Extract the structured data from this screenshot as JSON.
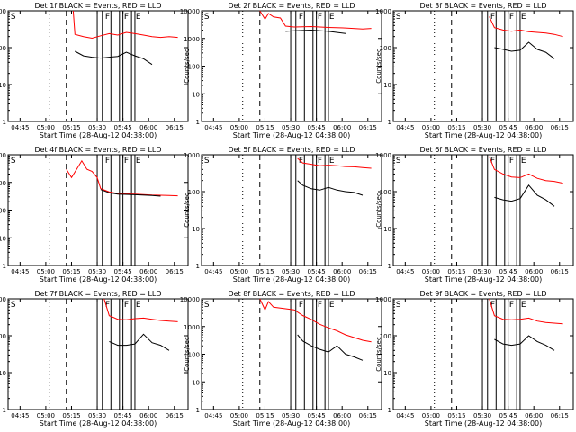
{
  "colors": {
    "events": "#000000",
    "lld": "#ff0000",
    "axes": "#000000",
    "background": "#ffffff"
  },
  "chart_data": [
    {
      "type": "line",
      "title": "Det 1f BLACK = Events, RED = LLD",
      "xlabel": "Start Time (28-Aug-12 04:38:00)",
      "ylabel": "Counts/sec",
      "xticks": [
        "04:45",
        "05:00",
        "05:15",
        "05:30",
        "05:45",
        "06:00",
        "06:15"
      ],
      "yticks": [
        "1",
        "10",
        "100",
        "1000"
      ],
      "ylog": true,
      "ylim": [
        1,
        1000
      ],
      "markers": [
        {
          "label": "S"
        },
        {
          "label": "F"
        },
        {
          "label": "F"
        },
        {
          "label": "E"
        }
      ],
      "series": [
        {
          "color": "red",
          "points": [
            [
              4,
              1000
            ],
            [
              5,
              230
            ],
            [
              10,
              200
            ],
            [
              15,
              180
            ],
            [
              20,
              210
            ],
            [
              25,
              240
            ],
            [
              30,
              220
            ],
            [
              35,
              260
            ],
            [
              40,
              240
            ],
            [
              45,
              220
            ],
            [
              50,
              200
            ],
            [
              55,
              190
            ],
            [
              60,
              200
            ],
            [
              65,
              190
            ]
          ]
        },
        {
          "color": "black",
          "points": [
            [
              5,
              80
            ],
            [
              10,
              60
            ],
            [
              15,
              55
            ],
            [
              20,
              52
            ],
            [
              25,
              55
            ],
            [
              30,
              58
            ],
            [
              35,
              75
            ],
            [
              40,
              60
            ],
            [
              45,
              50
            ],
            [
              50,
              35
            ]
          ]
        }
      ]
    },
    {
      "type": "line",
      "title": "Det 2f BLACK = Events, RED = LLD",
      "xlabel": "Start Time (28-Aug-12 04:38:00)",
      "ylabel": "Counts/sec",
      "xticks": [
        "04:45",
        "05:00",
        "05:15",
        "05:30",
        "05:45",
        "06:00",
        "06:15"
      ],
      "yticks": [
        "1",
        "10",
        "100",
        "1000"
      ],
      "ylog": true,
      "ylim": [
        1,
        10000
      ],
      "markers": [
        {
          "label": "S"
        },
        {
          "label": "F"
        },
        {
          "label": "F"
        },
        {
          "label": "E"
        }
      ],
      "series": [
        {
          "color": "red",
          "points": [
            [
              0,
              10000
            ],
            [
              3,
              5000
            ],
            [
              5,
              8000
            ],
            [
              8,
              6000
            ],
            [
              12,
              5500
            ],
            [
              15,
              2800
            ],
            [
              20,
              2600
            ],
            [
              30,
              2700
            ],
            [
              40,
              2500
            ],
            [
              50,
              2400
            ],
            [
              60,
              2200
            ],
            [
              65,
              2300
            ]
          ]
        },
        {
          "color": "black",
          "points": [
            [
              15,
              1800
            ],
            [
              20,
              1900
            ],
            [
              30,
              2000
            ],
            [
              40,
              1800
            ],
            [
              50,
              1500
            ]
          ]
        }
      ]
    },
    {
      "type": "line",
      "title": "Det 3f BLACK = Events, RED = LLD",
      "xlabel": "Start Time (28-Aug-12 04:38:00)",
      "ylabel": "Counts/sec",
      "xticks": [
        "04:45",
        "05:00",
        "05:15",
        "05:30",
        "05:45",
        "06:00",
        "06:15"
      ],
      "yticks": [
        "1",
        "10",
        "100",
        "1000"
      ],
      "ylog": true,
      "ylim": [
        1,
        1000
      ],
      "markers": [
        {
          "label": "S"
        },
        {
          "label": "F"
        },
        {
          "label": "F"
        },
        {
          "label": "E"
        }
      ],
      "series": [
        {
          "color": "red",
          "points": [
            [
              22,
              700
            ],
            [
              25,
              350
            ],
            [
              30,
              300
            ],
            [
              35,
              280
            ],
            [
              40,
              300
            ],
            [
              45,
              270
            ],
            [
              50,
              260
            ],
            [
              55,
              250
            ],
            [
              60,
              230
            ],
            [
              65,
              200
            ]
          ]
        },
        {
          "color": "black",
          "points": [
            [
              25,
              100
            ],
            [
              30,
              90
            ],
            [
              35,
              80
            ],
            [
              40,
              85
            ],
            [
              45,
              140
            ],
            [
              50,
              90
            ],
            [
              55,
              75
            ],
            [
              60,
              50
            ]
          ]
        }
      ]
    },
    {
      "type": "line",
      "title": "Det 4f BLACK = Events, RED = LLD",
      "xlabel": "Start Time (28-Aug-12 04:38:00)",
      "ylabel": "Counts/sec",
      "xticks": [
        "04:45",
        "05:00",
        "05:15",
        "05:30",
        "05:45",
        "06:00",
        "06:15"
      ],
      "yticks": [
        "1",
        "10",
        "100",
        "1000"
      ],
      "ylog": true,
      "ylim": [
        1,
        10000
      ],
      "markers": [
        {
          "label": "S"
        },
        {
          "label": "F"
        },
        {
          "label": "F"
        },
        {
          "label": "E"
        }
      ],
      "series": [
        {
          "color": "red",
          "points": [
            [
              0,
              3000
            ],
            [
              3,
              1500
            ],
            [
              6,
              3000
            ],
            [
              9,
              6000
            ],
            [
              12,
              3000
            ],
            [
              15,
              2500
            ],
            [
              18,
              1500
            ],
            [
              20,
              600
            ],
            [
              25,
              450
            ],
            [
              30,
              400
            ],
            [
              40,
              380
            ],
            [
              50,
              350
            ],
            [
              60,
              340
            ],
            [
              65,
              330
            ]
          ]
        },
        {
          "color": "black",
          "points": [
            [
              20,
              550
            ],
            [
              25,
              420
            ],
            [
              30,
              380
            ],
            [
              40,
              360
            ],
            [
              50,
              340
            ],
            [
              55,
              320
            ]
          ]
        }
      ]
    },
    {
      "type": "line",
      "title": "Det 5f BLACK = Events, RED = LLD",
      "xlabel": "Start Time (28-Aug-12 04:38:00)",
      "ylabel": "Counts/sec",
      "xticks": [
        "04:45",
        "05:00",
        "05:15",
        "05:30",
        "05:45",
        "06:00",
        "06:15"
      ],
      "yticks": [
        "1",
        "10",
        "100",
        "1000"
      ],
      "ylog": true,
      "ylim": [
        1,
        1000
      ],
      "markers": [
        {
          "label": "S"
        },
        {
          "label": "F"
        },
        {
          "label": "F"
        },
        {
          "label": "E"
        }
      ],
      "series": [
        {
          "color": "red",
          "points": [
            [
              22,
              800
            ],
            [
              25,
              600
            ],
            [
              30,
              550
            ],
            [
              35,
              500
            ],
            [
              40,
              520
            ],
            [
              45,
              500
            ],
            [
              50,
              480
            ],
            [
              55,
              470
            ],
            [
              60,
              450
            ],
            [
              65,
              430
            ]
          ]
        },
        {
          "color": "black",
          "points": [
            [
              22,
              200
            ],
            [
              25,
              150
            ],
            [
              30,
              120
            ],
            [
              35,
              110
            ],
            [
              40,
              130
            ],
            [
              45,
              110
            ],
            [
              50,
              100
            ],
            [
              55,
              95
            ],
            [
              60,
              80
            ]
          ]
        }
      ]
    },
    {
      "type": "line",
      "title": "Det 6f BLACK = Events, RED = LLD",
      "xlabel": "Start Time (28-Aug-12 04:38:00)",
      "ylabel": "Counts/sec",
      "xticks": [
        "04:45",
        "05:00",
        "05:15",
        "05:30",
        "05:45",
        "06:00",
        "06:15"
      ],
      "yticks": [
        "1",
        "10",
        "100",
        "1000"
      ],
      "ylog": true,
      "ylim": [
        1,
        1000
      ],
      "markers": [
        {
          "label": "S"
        },
        {
          "label": "F"
        },
        {
          "label": "F"
        },
        {
          "label": "E"
        }
      ],
      "series": [
        {
          "color": "red",
          "points": [
            [
              22,
              900
            ],
            [
              25,
              400
            ],
            [
              30,
              300
            ],
            [
              35,
              250
            ],
            [
              40,
              240
            ],
            [
              45,
              300
            ],
            [
              50,
              230
            ],
            [
              55,
              200
            ],
            [
              60,
              190
            ],
            [
              65,
              170
            ]
          ]
        },
        {
          "color": "black",
          "points": [
            [
              25,
              70
            ],
            [
              30,
              60
            ],
            [
              35,
              55
            ],
            [
              40,
              65
            ],
            [
              45,
              150
            ],
            [
              50,
              80
            ],
            [
              55,
              60
            ],
            [
              60,
              40
            ]
          ]
        }
      ]
    },
    {
      "type": "line",
      "title": "Det 7f BLACK = Events, RED = LLD",
      "xlabel": "Start Time (28-Aug-12 04:38:00)",
      "ylabel": "Counts/sec",
      "xticks": [
        "04:45",
        "05:00",
        "05:15",
        "05:30",
        "05:45",
        "06:00",
        "06:15"
      ],
      "yticks": [
        "1",
        "10",
        "100",
        "1000"
      ],
      "ylog": true,
      "ylim": [
        1,
        1000
      ],
      "markers": [
        {
          "label": "S"
        },
        {
          "label": "F"
        },
        {
          "label": "F"
        },
        {
          "label": "E"
        }
      ],
      "series": [
        {
          "color": "red",
          "points": [
            [
              22,
              1000
            ],
            [
              25,
              350
            ],
            [
              30,
              280
            ],
            [
              35,
              270
            ],
            [
              40,
              290
            ],
            [
              45,
              300
            ],
            [
              50,
              280
            ],
            [
              55,
              260
            ],
            [
              60,
              250
            ],
            [
              65,
              240
            ]
          ]
        },
        {
          "color": "black",
          "points": [
            [
              25,
              70
            ],
            [
              30,
              55
            ],
            [
              35,
              55
            ],
            [
              40,
              60
            ],
            [
              45,
              110
            ],
            [
              50,
              65
            ],
            [
              55,
              55
            ],
            [
              60,
              40
            ]
          ]
        }
      ]
    },
    {
      "type": "line",
      "title": "Det 8f BLACK = Events, RED = LLD",
      "xlabel": "Start Time (28-Aug-12 04:38:00)",
      "ylabel": "Counts/sec",
      "xticks": [
        "04:45",
        "05:00",
        "05:15",
        "05:30",
        "05:45",
        "06:00",
        "06:15"
      ],
      "yticks": [
        "1",
        "10",
        "100",
        "1000"
      ],
      "ylog": true,
      "ylim": [
        1,
        10000
      ],
      "markers": [
        {
          "label": "S"
        },
        {
          "label": "F"
        },
        {
          "label": "F"
        },
        {
          "label": "E"
        }
      ],
      "series": [
        {
          "color": "red",
          "points": [
            [
              0,
              10000
            ],
            [
              3,
              4000
            ],
            [
              5,
              8000
            ],
            [
              8,
              5000
            ],
            [
              20,
              4000
            ],
            [
              25,
              2500
            ],
            [
              30,
              1800
            ],
            [
              35,
              1200
            ],
            [
              40,
              900
            ],
            [
              45,
              700
            ],
            [
              50,
              500
            ],
            [
              55,
              400
            ],
            [
              60,
              320
            ],
            [
              65,
              280
            ]
          ]
        },
        {
          "color": "black",
          "points": [
            [
              22,
              500
            ],
            [
              25,
              300
            ],
            [
              30,
              200
            ],
            [
              35,
              150
            ],
            [
              40,
              120
            ],
            [
              45,
              200
            ],
            [
              50,
              100
            ],
            [
              55,
              80
            ],
            [
              60,
              60
            ]
          ]
        }
      ]
    },
    {
      "type": "line",
      "title": "Det 9f BLACK = Events, RED = LLD",
      "xlabel": "Start Time (28-Aug-12 04:38:00)",
      "ylabel": "Counts/sec",
      "xticks": [
        "04:45",
        "05:00",
        "05:15",
        "05:30",
        "05:45",
        "06:00",
        "06:15"
      ],
      "yticks": [
        "1",
        "10",
        "100",
        "1000"
      ],
      "ylog": true,
      "ylim": [
        1,
        1000
      ],
      "markers": [
        {
          "label": "S"
        },
        {
          "label": "F"
        },
        {
          "label": "F"
        },
        {
          "label": "E"
        }
      ],
      "series": [
        {
          "color": "red",
          "points": [
            [
              22,
              1000
            ],
            [
              25,
              350
            ],
            [
              30,
              280
            ],
            [
              35,
              270
            ],
            [
              40,
              280
            ],
            [
              45,
              300
            ],
            [
              50,
              250
            ],
            [
              55,
              230
            ],
            [
              60,
              220
            ],
            [
              65,
              210
            ]
          ]
        },
        {
          "color": "black",
          "points": [
            [
              25,
              80
            ],
            [
              30,
              60
            ],
            [
              35,
              55
            ],
            [
              40,
              60
            ],
            [
              45,
              100
            ],
            [
              50,
              70
            ],
            [
              55,
              55
            ],
            [
              60,
              40
            ]
          ]
        }
      ]
    }
  ]
}
